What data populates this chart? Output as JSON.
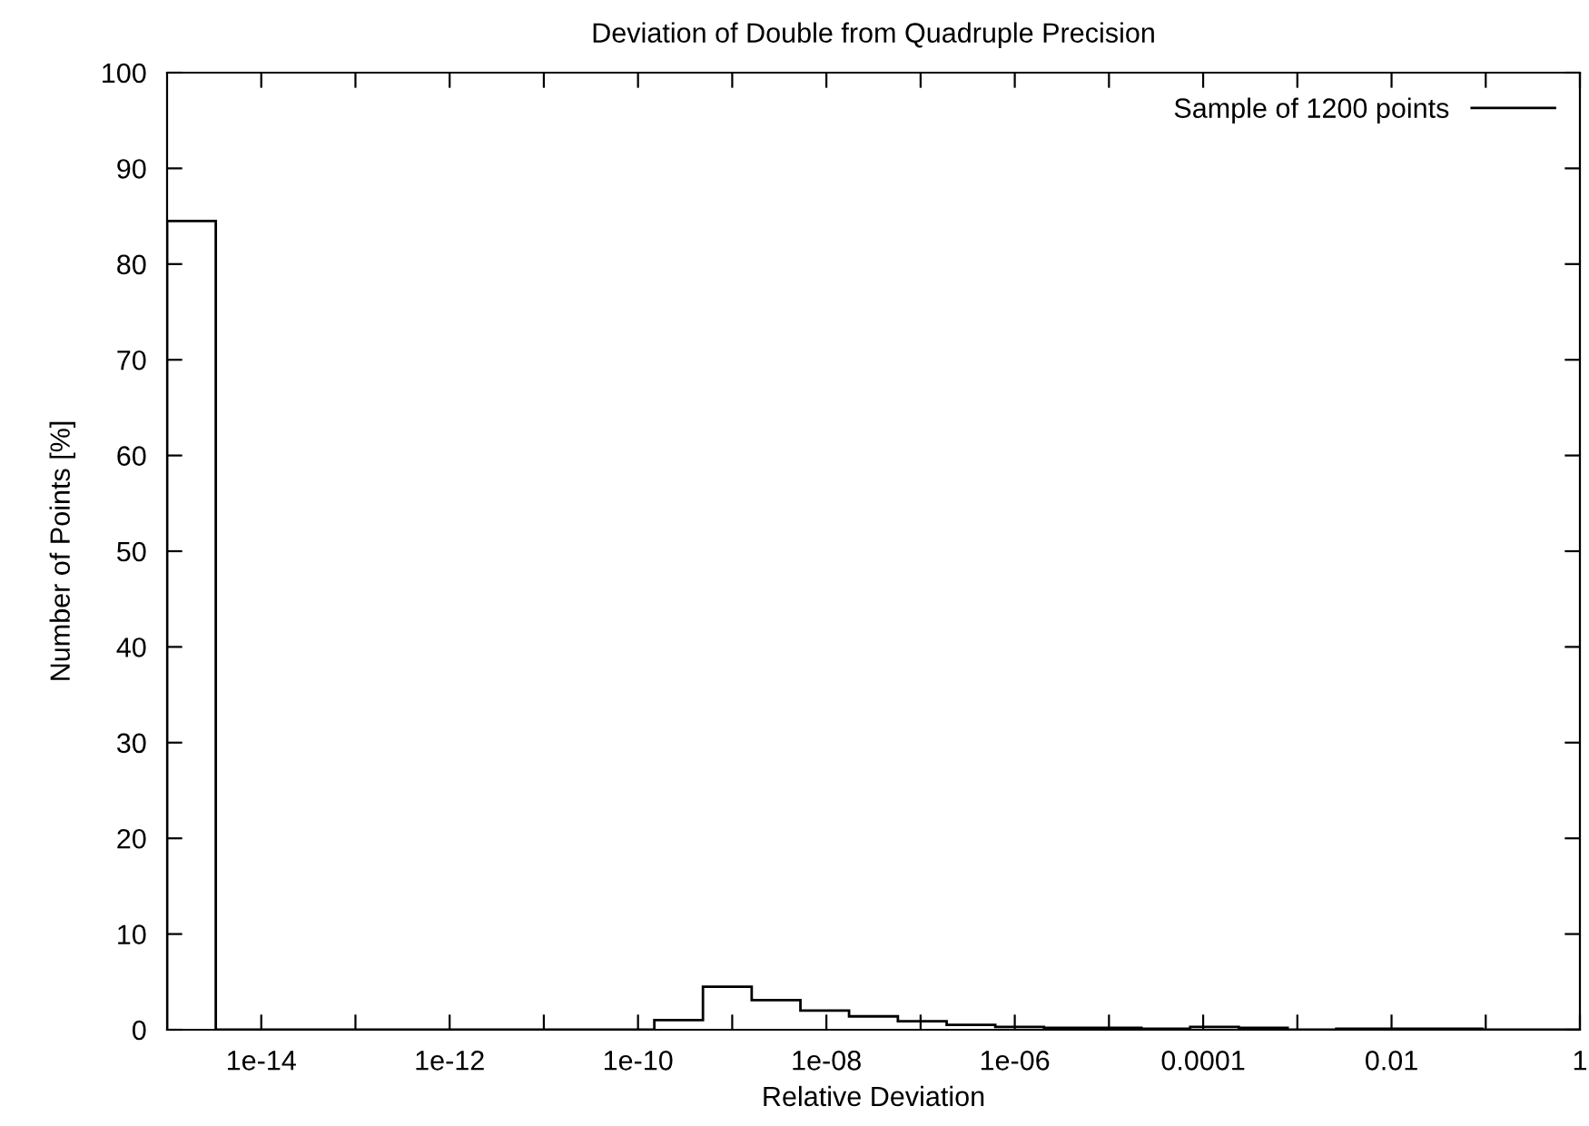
{
  "chart_data": {
    "type": "histogram",
    "title": "Deviation of Double from Quadruple Precision",
    "xlabel": "Relative Deviation",
    "ylabel": "Number of Points [%]",
    "bins": [
      1e-15,
      3.29e-15,
      1.08e-14,
      3.56e-14,
      1.17e-13,
      3.86e-13,
      1.27e-12,
      4.18e-12,
      1.37e-11,
      4.52e-11,
      1.49e-10,
      4.89e-10,
      1.61e-09,
      5.3e-09,
      1.74e-08,
      5.74e-08,
      1.89e-07,
      6.21e-07,
      2.04e-06,
      6.72e-06,
      2.21e-05,
      7.28e-05,
      0.000239,
      0.000788,
      0.00259,
      0.00853,
      0.0281,
      0.0924,
      0.304,
      1
    ],
    "series": [
      {
        "name": "Sample of 1200 points",
        "color": "#000000",
        "values": [
          84.5,
          0,
          0,
          0,
          0,
          0,
          0,
          0,
          0,
          0,
          1.0,
          4.5,
          3.1,
          2.0,
          1.4,
          0.9,
          0.5,
          0.3,
          0.2,
          0.2,
          0.1,
          0.3,
          0.2,
          0,
          0.1,
          0.1,
          0.1,
          0,
          0
        ]
      }
    ],
    "log": "x",
    "xlim": [
      1e-15,
      1
    ],
    "xticks": [
      {
        "value": 1e-14,
        "label": "1e-14"
      },
      {
        "value": 1e-13,
        "label": null
      },
      {
        "value": 1e-12,
        "label": "1e-12"
      },
      {
        "value": 1e-11,
        "label": null
      },
      {
        "value": 1e-10,
        "label": "1e-10"
      },
      {
        "value": 1e-09,
        "label": null
      },
      {
        "value": 1e-08,
        "label": "1e-08"
      },
      {
        "value": 1e-07,
        "label": null
      },
      {
        "value": 1e-06,
        "label": "1e-06"
      },
      {
        "value": 1e-05,
        "label": null
      },
      {
        "value": 0.0001,
        "label": "0.0001"
      },
      {
        "value": 0.001,
        "label": null
      },
      {
        "value": 0.01,
        "label": "0.01"
      },
      {
        "value": 0.1,
        "label": null
      },
      {
        "value": 1,
        "label": "1"
      }
    ],
    "ylim": [
      0,
      100
    ],
    "yticks": [
      0,
      10,
      20,
      30,
      40,
      50,
      60,
      70,
      80,
      90,
      100
    ],
    "grid": false,
    "legend": "top right"
  }
}
